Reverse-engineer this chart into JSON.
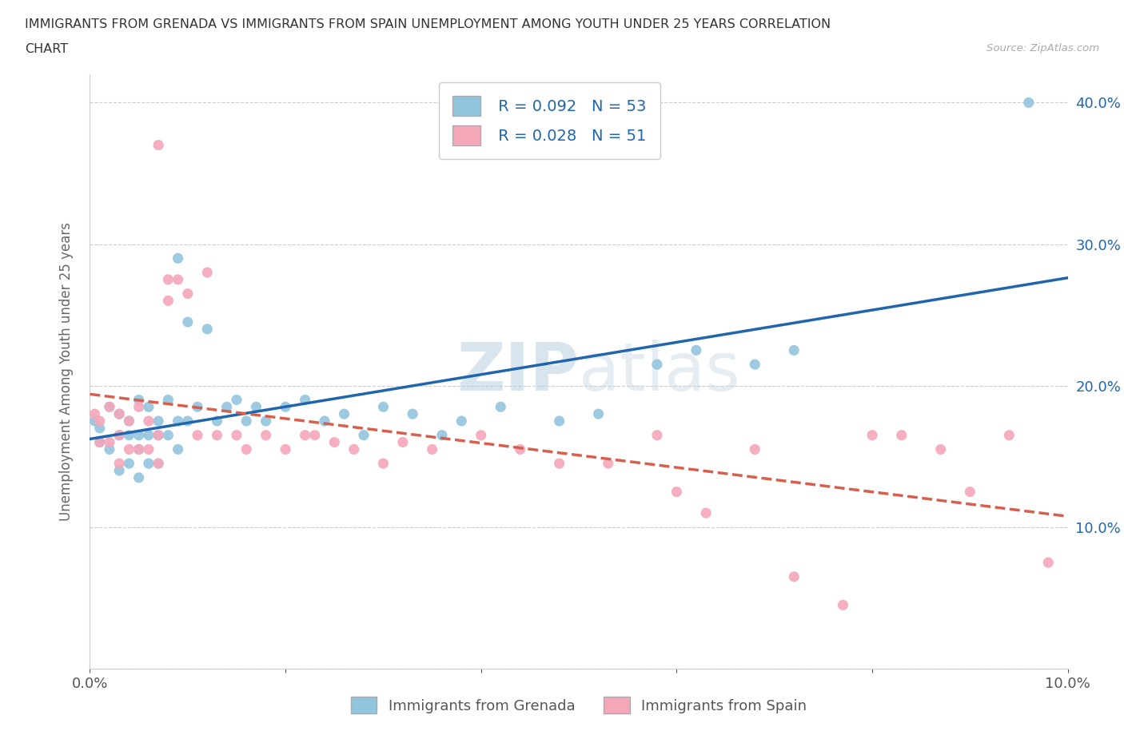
{
  "title_line1": "IMMIGRANTS FROM GRENADA VS IMMIGRANTS FROM SPAIN UNEMPLOYMENT AMONG YOUTH UNDER 25 YEARS CORRELATION",
  "title_line2": "CHART",
  "source_text": "Source: ZipAtlas.com",
  "ylabel": "Unemployment Among Youth under 25 years",
  "x_min": 0.0,
  "x_max": 0.1,
  "y_min": 0.0,
  "y_max": 0.42,
  "x_ticks": [
    0.0,
    0.02,
    0.04,
    0.06,
    0.08,
    0.1
  ],
  "x_tick_labels": [
    "0.0%",
    "",
    "",
    "",
    "",
    "10.0%"
  ],
  "y_ticks": [
    0.0,
    0.1,
    0.2,
    0.3,
    0.4
  ],
  "y_tick_labels_left": [
    "",
    "",
    "",
    "",
    ""
  ],
  "y_tick_labels_right": [
    "",
    "10.0%",
    "20.0%",
    "30.0%",
    "40.0%"
  ],
  "legend_r_grenada": "R = 0.092",
  "legend_n_grenada": "N = 53",
  "legend_r_spain": "R = 0.028",
  "legend_n_spain": "N = 51",
  "grenada_color": "#92c5de",
  "spain_color": "#f4a7b9",
  "grenada_line_color": "#2166ac",
  "spain_line_color": "#d6604d",
  "watermark_color": "#d0dce8",
  "background_color": "#ffffff",
  "grenada_scatter_x": [
    0.0005,
    0.001,
    0.001,
    0.002,
    0.002,
    0.003,
    0.003,
    0.003,
    0.004,
    0.004,
    0.004,
    0.005,
    0.005,
    0.005,
    0.005,
    0.006,
    0.006,
    0.006,
    0.007,
    0.007,
    0.007,
    0.008,
    0.008,
    0.009,
    0.009,
    0.009,
    0.01,
    0.01,
    0.011,
    0.012,
    0.013,
    0.014,
    0.015,
    0.016,
    0.017,
    0.018,
    0.02,
    0.022,
    0.024,
    0.026,
    0.028,
    0.03,
    0.033,
    0.036,
    0.038,
    0.042,
    0.048,
    0.052,
    0.058,
    0.062,
    0.068,
    0.072,
    0.096
  ],
  "grenada_scatter_y": [
    0.175,
    0.17,
    0.16,
    0.185,
    0.155,
    0.18,
    0.165,
    0.14,
    0.175,
    0.165,
    0.145,
    0.19,
    0.165,
    0.155,
    0.135,
    0.185,
    0.165,
    0.145,
    0.175,
    0.165,
    0.145,
    0.19,
    0.165,
    0.29,
    0.175,
    0.155,
    0.245,
    0.175,
    0.185,
    0.24,
    0.175,
    0.185,
    0.19,
    0.175,
    0.185,
    0.175,
    0.185,
    0.19,
    0.175,
    0.18,
    0.165,
    0.185,
    0.18,
    0.165,
    0.175,
    0.185,
    0.175,
    0.18,
    0.215,
    0.225,
    0.215,
    0.225,
    0.4
  ],
  "spain_scatter_x": [
    0.0005,
    0.001,
    0.001,
    0.002,
    0.002,
    0.003,
    0.003,
    0.003,
    0.004,
    0.004,
    0.005,
    0.005,
    0.006,
    0.006,
    0.007,
    0.007,
    0.007,
    0.008,
    0.008,
    0.009,
    0.01,
    0.011,
    0.012,
    0.013,
    0.015,
    0.016,
    0.018,
    0.02,
    0.022,
    0.023,
    0.025,
    0.027,
    0.03,
    0.032,
    0.035,
    0.04,
    0.044,
    0.048,
    0.053,
    0.058,
    0.06,
    0.063,
    0.068,
    0.072,
    0.077,
    0.08,
    0.083,
    0.087,
    0.09,
    0.094,
    0.098
  ],
  "spain_scatter_y": [
    0.18,
    0.175,
    0.16,
    0.185,
    0.16,
    0.18,
    0.165,
    0.145,
    0.175,
    0.155,
    0.185,
    0.155,
    0.175,
    0.155,
    0.37,
    0.165,
    0.145,
    0.275,
    0.26,
    0.275,
    0.265,
    0.165,
    0.28,
    0.165,
    0.165,
    0.155,
    0.165,
    0.155,
    0.165,
    0.165,
    0.16,
    0.155,
    0.145,
    0.16,
    0.155,
    0.165,
    0.155,
    0.145,
    0.145,
    0.165,
    0.125,
    0.11,
    0.155,
    0.065,
    0.045,
    0.165,
    0.165,
    0.155,
    0.125,
    0.165,
    0.075
  ]
}
